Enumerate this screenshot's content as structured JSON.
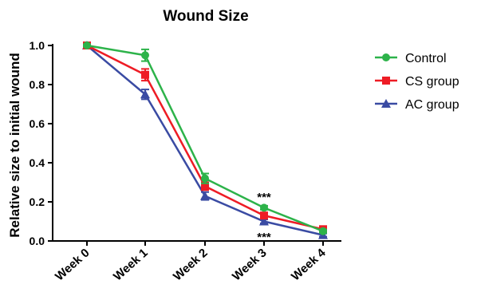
{
  "chart_data": {
    "type": "line",
    "title": "Wound Size",
    "xlabel": "",
    "ylabel": "Relative size to initial wound",
    "categories": [
      "Week 0",
      "Week 1",
      "Week 2",
      "Week 3",
      "Week 4"
    ],
    "ylim": [
      0,
      1.0
    ],
    "yticks": [
      "0.0",
      "0.2",
      "0.4",
      "0.6",
      "0.8",
      "1.0"
    ],
    "grid": false,
    "legend_position": "right",
    "series": [
      {
        "name": "Control",
        "color": "#2db34a",
        "marker": "circle",
        "values": [
          1.0,
          0.95,
          0.32,
          0.17,
          0.05
        ],
        "errors": [
          0.005,
          0.03,
          0.025,
          0.01,
          0.008
        ]
      },
      {
        "name": "CS group",
        "color": "#ee1c25",
        "marker": "square",
        "values": [
          1.0,
          0.85,
          0.28,
          0.13,
          0.06
        ],
        "errors": [
          0.005,
          0.03,
          0.02,
          0.01,
          0.008
        ]
      },
      {
        "name": "AC group",
        "color": "#3a4ba3",
        "marker": "triangle",
        "values": [
          1.0,
          0.75,
          0.23,
          0.1,
          0.03
        ],
        "errors": [
          0.005,
          0.025,
          0.02,
          0.01,
          0.008
        ]
      }
    ],
    "annotations": [
      {
        "text": "***",
        "category": "Week 3",
        "position": "above"
      },
      {
        "text": "***",
        "category": "Week 3",
        "position": "below"
      }
    ]
  }
}
